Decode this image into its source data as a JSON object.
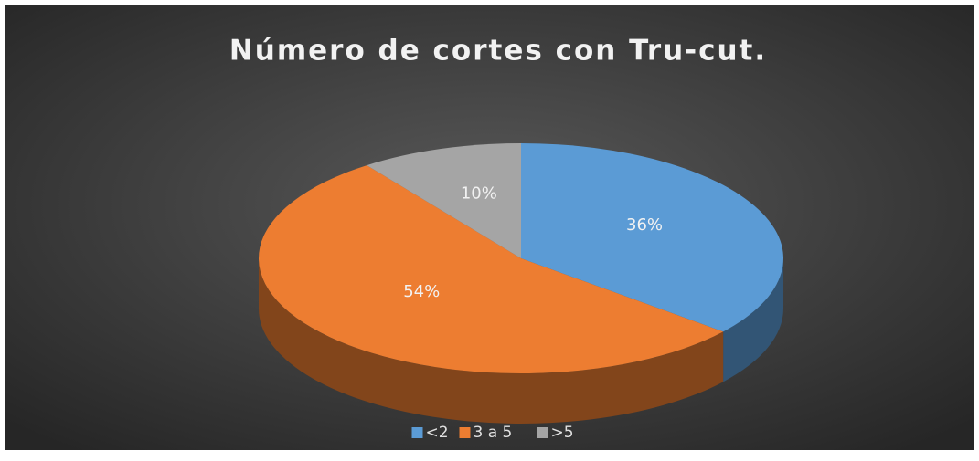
{
  "chart_data": {
    "type": "pie",
    "title": "Número de cortes con Tru-cut.",
    "categories": [
      "<2",
      "3 a 5",
      ">5"
    ],
    "values": [
      36,
      54,
      10
    ],
    "value_labels": [
      "36%",
      "54%",
      "10%"
    ],
    "colors": [
      "#5b9bd5",
      "#ed7d31",
      "#a5a5a5"
    ],
    "legend": "bottom"
  }
}
